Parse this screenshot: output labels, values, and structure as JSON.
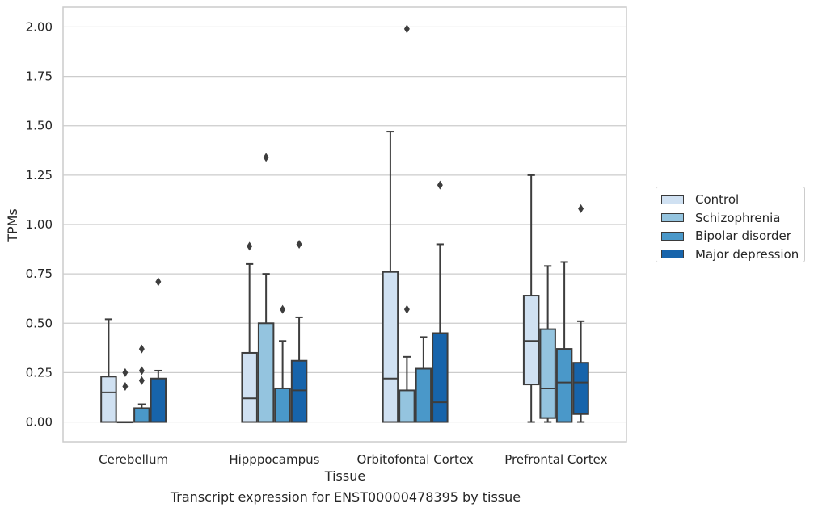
{
  "chart_data": {
    "type": "box",
    "xlabel": "Tissue",
    "ylabel": "TPMs",
    "ylim": [
      -0.1,
      2.1
    ],
    "yticks": [
      "0.00",
      "0.25",
      "0.50",
      "0.75",
      "1.00",
      "1.25",
      "1.50",
      "1.75",
      "2.00"
    ],
    "grid": "horizontal",
    "legend_placement": "right-outside",
    "categories": [
      "Cerebellum",
      "Hipppocampus",
      "Orbitofontal Cortex",
      "Prefrontal Cortex"
    ],
    "series": [
      {
        "name": "Control",
        "color": "#d0e1f2",
        "boxes": [
          {
            "whislo": 0.0,
            "q1": 0.0,
            "med": 0.15,
            "q3": 0.23,
            "whishi": 0.52,
            "fliers": []
          },
          {
            "whislo": 0.0,
            "q1": 0.0,
            "med": 0.12,
            "q3": 0.35,
            "whishi": 0.8,
            "fliers": [
              0.89
            ]
          },
          {
            "whislo": 0.0,
            "q1": 0.0,
            "med": 0.22,
            "q3": 0.76,
            "whishi": 1.47,
            "fliers": []
          },
          {
            "whislo": 0.0,
            "q1": 0.19,
            "med": 0.41,
            "q3": 0.64,
            "whishi": 1.25,
            "fliers": []
          }
        ]
      },
      {
        "name": "Schizophrenia",
        "color": "#94c4df",
        "boxes": [
          {
            "whislo": 0.0,
            "q1": 0.0,
            "med": 0.0,
            "q3": 0.0,
            "whishi": 0.0,
            "fliers": [
              0.25,
              0.18
            ]
          },
          {
            "whislo": 0.0,
            "q1": 0.0,
            "med": 0.0,
            "q3": 0.5,
            "whishi": 0.75,
            "fliers": [
              1.34
            ]
          },
          {
            "whislo": 0.0,
            "q1": 0.0,
            "med": 0.0,
            "q3": 0.16,
            "whishi": 0.33,
            "fliers": [
              0.57,
              1.99
            ]
          },
          {
            "whislo": 0.0,
            "q1": 0.02,
            "med": 0.17,
            "q3": 0.47,
            "whishi": 0.79,
            "fliers": []
          }
        ]
      },
      {
        "name": "Bipolar disorder",
        "color": "#4a98c9",
        "boxes": [
          {
            "whislo": 0.0,
            "q1": 0.0,
            "med": 0.0,
            "q3": 0.07,
            "whishi": 0.09,
            "fliers": [
              0.37,
              0.26,
              0.21
            ]
          },
          {
            "whislo": 0.0,
            "q1": 0.0,
            "med": 0.0,
            "q3": 0.17,
            "whishi": 0.41,
            "fliers": [
              0.57
            ]
          },
          {
            "whislo": 0.0,
            "q1": 0.0,
            "med": 0.0,
            "q3": 0.27,
            "whishi": 0.43,
            "fliers": []
          },
          {
            "whislo": 0.0,
            "q1": 0.0,
            "med": 0.2,
            "q3": 0.37,
            "whishi": 0.81,
            "fliers": []
          }
        ]
      },
      {
        "name": "Major depression",
        "color": "#1764ab",
        "boxes": [
          {
            "whislo": 0.0,
            "q1": 0.0,
            "med": 0.0,
            "q3": 0.22,
            "whishi": 0.26,
            "fliers": [
              0.71
            ]
          },
          {
            "whislo": 0.0,
            "q1": 0.0,
            "med": 0.16,
            "q3": 0.31,
            "whishi": 0.53,
            "fliers": [
              0.9
            ]
          },
          {
            "whislo": 0.0,
            "q1": 0.0,
            "med": 0.1,
            "q3": 0.45,
            "whishi": 0.9,
            "fliers": [
              1.2
            ]
          },
          {
            "whislo": 0.0,
            "q1": 0.04,
            "med": 0.2,
            "q3": 0.3,
            "whishi": 0.51,
            "fliers": [
              1.08
            ]
          }
        ]
      }
    ]
  },
  "caption": "Transcript expression for ENST00000478395 by tissue"
}
